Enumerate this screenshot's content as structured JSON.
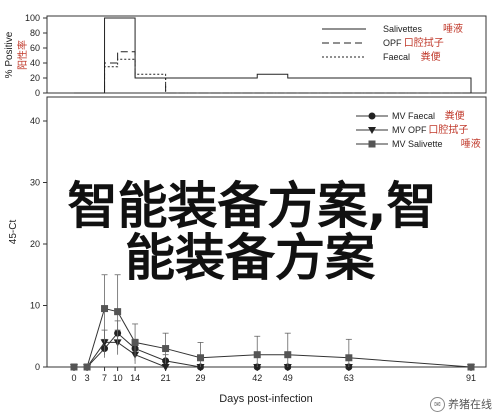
{
  "chart_data": [
    {
      "type": "line",
      "ylabel": "% Positive",
      "ylabel_cn": "阳性率",
      "ylim": [
        0,
        100
      ],
      "yticks": [
        0,
        20,
        40,
        60,
        80,
        100
      ],
      "xlim": [
        0,
        91
      ],
      "grid": false,
      "legend_position": "top-right",
      "series": [
        {
          "name": "Salivettes",
          "name_cn": "唾液",
          "style": "solid",
          "x": [
            0,
            3,
            7,
            10,
            14,
            21,
            29,
            42,
            49,
            63,
            91
          ],
          "y": [
            0,
            0,
            100,
            100,
            20,
            20,
            20,
            25,
            20,
            20,
            0
          ]
        },
        {
          "name": "OPF",
          "name_cn": "口腔拭子",
          "style": "dashed",
          "x": [
            0,
            3,
            7,
            10,
            14,
            21,
            29,
            42,
            49,
            63,
            91
          ],
          "y": [
            0,
            0,
            40,
            55,
            20,
            0,
            0,
            0,
            0,
            0,
            0
          ]
        },
        {
          "name": "Faecal",
          "name_cn": "粪便",
          "style": "dotted",
          "x": [
            0,
            3,
            7,
            10,
            14,
            21,
            29,
            42,
            49,
            63,
            91
          ],
          "y": [
            0,
            0,
            35,
            45,
            25,
            0,
            0,
            0,
            0,
            0,
            0
          ]
        }
      ]
    },
    {
      "type": "line",
      "xlabel": "Days post-infection",
      "ylabel": "45-Ct",
      "ylim": [
        0,
        40
      ],
      "yticks": [
        0,
        10,
        20,
        30,
        40
      ],
      "xticks": [
        0,
        3,
        7,
        10,
        14,
        21,
        29,
        42,
        49,
        63,
        91
      ],
      "grid": false,
      "legend_position": "top-right",
      "series": [
        {
          "name": "MV Faecal",
          "name_cn": "粪便",
          "marker": "circle",
          "x": [
            0,
            3,
            7,
            10,
            14,
            21,
            29,
            42,
            49,
            63,
            91
          ],
          "y": [
            0,
            0,
            3,
            5.5,
            3,
            1,
            0,
            0,
            0,
            0,
            0
          ],
          "err": [
            0,
            0,
            1.5,
            2,
            1.5,
            1,
            0,
            0,
            0,
            0,
            0
          ]
        },
        {
          "name": "MV OPF",
          "name_cn": "口腔拭子",
          "marker": "triangle",
          "x": [
            0,
            3,
            7,
            10,
            14,
            21,
            29,
            42,
            49,
            63,
            91
          ],
          "y": [
            0,
            0,
            4,
            4,
            2,
            0,
            0,
            0,
            0,
            0,
            0
          ],
          "err": [
            0,
            0,
            2,
            2,
            1.5,
            0,
            0,
            0,
            0,
            0,
            0
          ]
        },
        {
          "name": "MV Salivette",
          "name_cn": "唾液",
          "marker": "square",
          "x": [
            0,
            3,
            7,
            10,
            14,
            21,
            29,
            42,
            49,
            63,
            91
          ],
          "y": [
            0,
            0,
            9.5,
            9,
            4,
            3,
            1.5,
            2,
            2,
            1.5,
            0
          ],
          "err": [
            0,
            0,
            5.5,
            6,
            3,
            2.5,
            2.5,
            3,
            3.5,
            3,
            0
          ]
        }
      ]
    }
  ],
  "overlay": {
    "line1": "智能装备方案,智",
    "line2": "能装备方案"
  },
  "watermark": "养猪在线"
}
